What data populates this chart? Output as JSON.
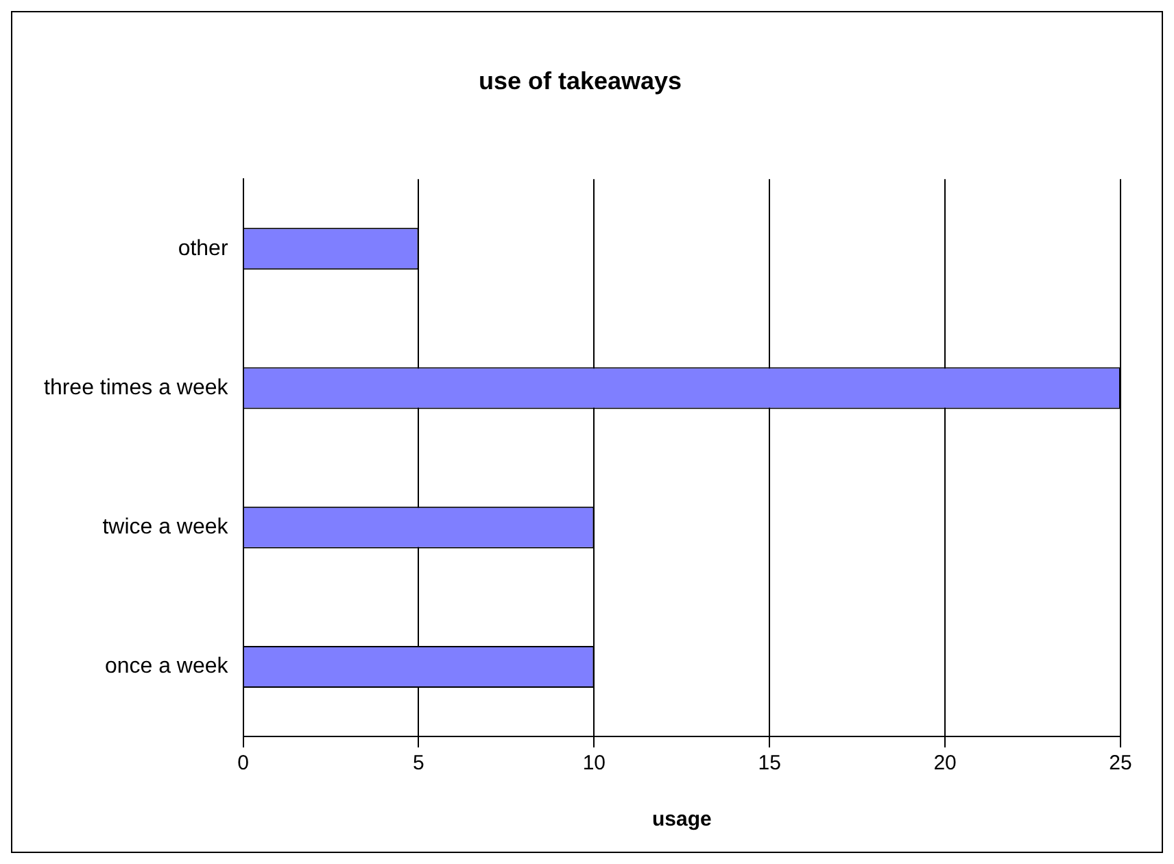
{
  "chart_data": {
    "type": "bar",
    "orientation": "horizontal",
    "title": "use of takeaways",
    "xlabel": "usage",
    "categories": [
      "other",
      "three times a week",
      "twice a week",
      "once a week"
    ],
    "values": [
      5,
      25,
      10,
      10
    ],
    "color": "#7f7fff",
    "xlim": [
      0,
      25
    ],
    "xticks": [
      0,
      5,
      10,
      15,
      20,
      25
    ],
    "grid": "x",
    "legend": false
  }
}
